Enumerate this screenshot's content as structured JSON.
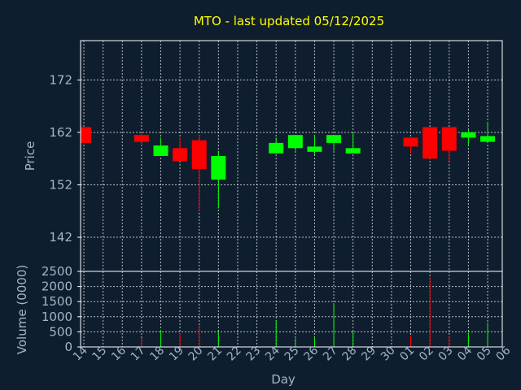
{
  "chart_data": {
    "type": "candlestick",
    "title": "MTO - last updated 05/12/2025",
    "xlabel": "Day",
    "price_panel": {
      "ylabel": "Price",
      "yticks": [
        "172",
        "162",
        "152",
        "142"
      ],
      "ylim": [
        135.5,
        179.5
      ]
    },
    "volume_panel": {
      "ylabel": "Volume (0000)",
      "yticks": [
        "2500",
        "2000",
        "1500",
        "1000",
        "500",
        "0"
      ],
      "ylim": [
        0,
        2500
      ]
    },
    "x_labels": [
      "14",
      "15",
      "16",
      "17",
      "18",
      "19",
      "20",
      "21",
      "22",
      "23",
      "24",
      "25",
      "26",
      "27",
      "28",
      "29",
      "30",
      "01",
      "02",
      "03",
      "04",
      "05",
      "06"
    ],
    "grid": true,
    "colors": {
      "background": "#0f1e2e",
      "up": "#00ff00",
      "down": "#ff0000",
      "title": "#ffff00",
      "axis_text": "#9fb6cc",
      "frame": "#ffffff",
      "grid": "#ffffff"
    },
    "candles": [
      {
        "x": "14",
        "open": 163,
        "high": 163,
        "low": 160,
        "close": 160
      },
      {
        "x": "17",
        "open": 161.5,
        "high": 162,
        "low": 159.5,
        "close": 160.2
      },
      {
        "x": "18",
        "open": 157.5,
        "high": 161,
        "low": 157.5,
        "close": 159.5
      },
      {
        "x": "19",
        "open": 159,
        "high": 161,
        "low": 156.5,
        "close": 156.5
      },
      {
        "x": "20",
        "open": 160.5,
        "high": 161.5,
        "low": 147,
        "close": 155
      },
      {
        "x": "21",
        "open": 153,
        "high": 158.5,
        "low": 147.5,
        "close": 157.5
      },
      {
        "x": "24",
        "open": 158,
        "high": 161,
        "low": 158,
        "close": 160
      },
      {
        "x": "25",
        "open": 159,
        "high": 161.5,
        "low": 158.5,
        "close": 161.5
      },
      {
        "x": "26",
        "open": 158.3,
        "high": 161.5,
        "low": 157.8,
        "close": 159.3
      },
      {
        "x": "27",
        "open": 160,
        "high": 161.5,
        "low": 158.5,
        "close": 161.5
      },
      {
        "x": "28",
        "open": 158,
        "high": 162,
        "low": 158,
        "close": 159
      },
      {
        "x": "01",
        "open": 161,
        "high": 161,
        "low": 158,
        "close": 159.3
      },
      {
        "x": "02",
        "open": 163,
        "high": 163,
        "low": 157,
        "close": 157
      },
      {
        "x": "03",
        "open": 163,
        "high": 163,
        "low": 156.5,
        "close": 158.5
      },
      {
        "x": "04",
        "open": 161,
        "high": 162.5,
        "low": 159.5,
        "close": 162
      },
      {
        "x": "05",
        "open": 160.2,
        "high": 164,
        "low": 160.2,
        "close": 161.3
      }
    ],
    "volume": [
      {
        "x": "17",
        "value": 300,
        "dir": "down"
      },
      {
        "x": "18",
        "value": 560,
        "dir": "up"
      },
      {
        "x": "19",
        "value": 450,
        "dir": "down"
      },
      {
        "x": "20",
        "value": 730,
        "dir": "down"
      },
      {
        "x": "21",
        "value": 480,
        "dir": "up"
      },
      {
        "x": "24",
        "value": 880,
        "dir": "up"
      },
      {
        "x": "25",
        "value": 280,
        "dir": "up"
      },
      {
        "x": "26",
        "value": 330,
        "dir": "up"
      },
      {
        "x": "27",
        "value": 1450,
        "dir": "up"
      },
      {
        "x": "28",
        "value": 520,
        "dir": "up"
      },
      {
        "x": "01",
        "value": 380,
        "dir": "down"
      },
      {
        "x": "02",
        "value": 2300,
        "dir": "down"
      },
      {
        "x": "03",
        "value": 350,
        "dir": "down"
      },
      {
        "x": "04",
        "value": 470,
        "dir": "up"
      },
      {
        "x": "05",
        "value": 800,
        "dir": "up"
      }
    ]
  }
}
